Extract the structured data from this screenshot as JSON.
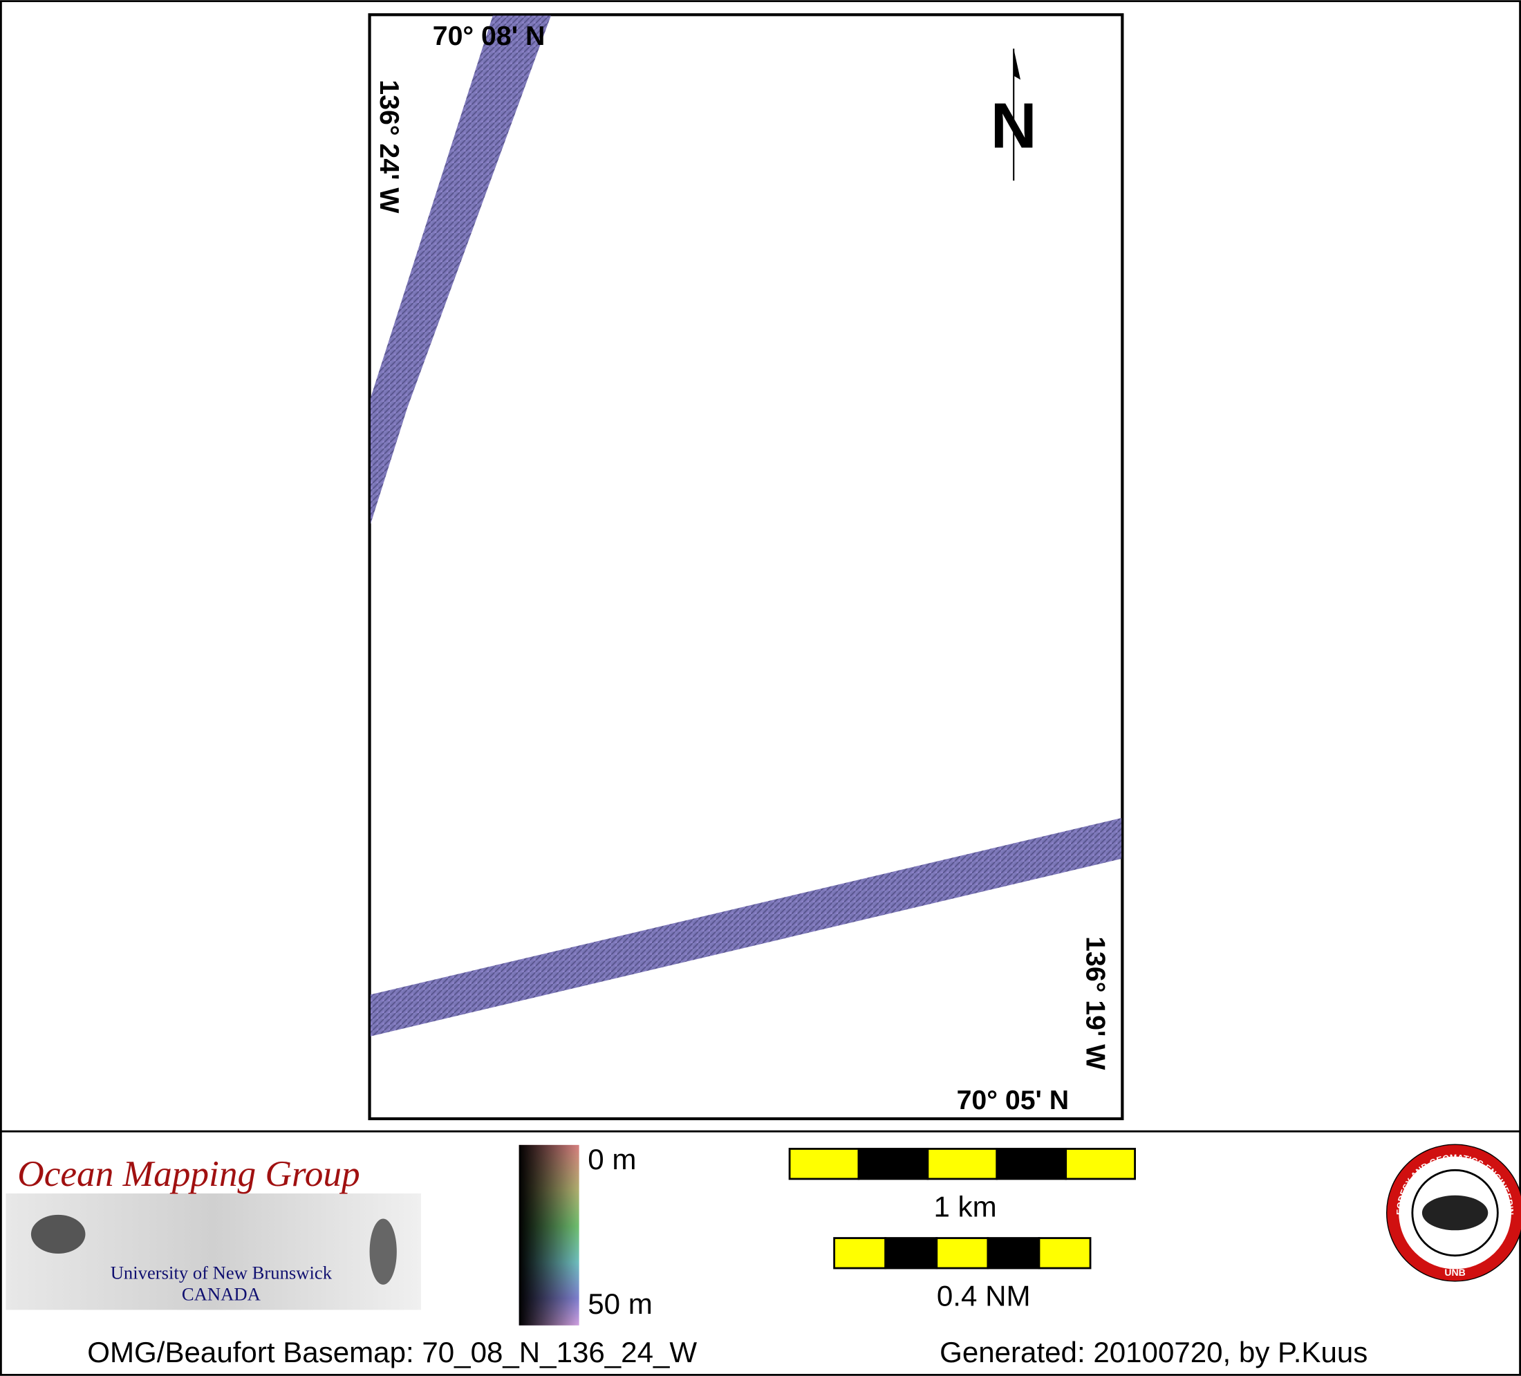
{
  "map": {
    "labels": {
      "top_lat": "70° 08' N",
      "left_lon": "136° 24' W",
      "bottom_lat": "70° 05' N",
      "right_lon": "136° 19' W",
      "north": "N"
    },
    "logo": {
      "title": "Ocean Mapping Group",
      "university": "University of New Brunswick",
      "country": "CANADA"
    },
    "colorbar": {
      "top": "0 m",
      "bottom": "50 m"
    },
    "scale_bars": [
      "1 km",
      "0.4 NM"
    ],
    "footer": {
      "basemap": "OMG/Beaufort Basemap: 70_08_N_136_24_W",
      "generated": "Generated: 20100720, by P.Kuus"
    },
    "emblem": {
      "ring": "GEODESY AND GEOMATICS ENGINEERING",
      "center": "UNB"
    }
  }
}
